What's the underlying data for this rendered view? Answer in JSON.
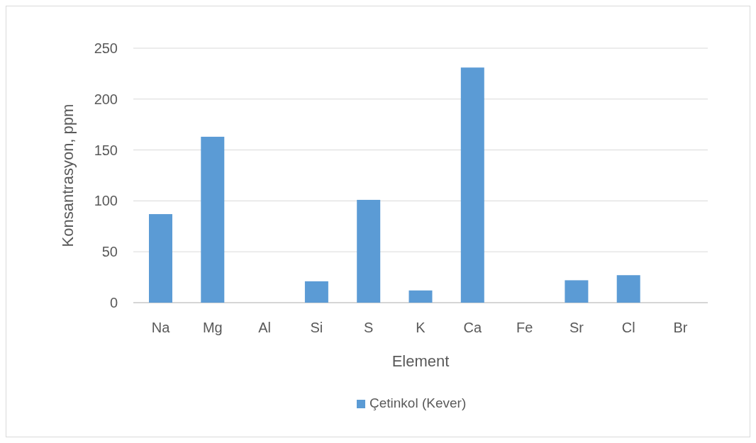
{
  "chart_data": {
    "type": "bar",
    "xlabel": "Element",
    "ylabel": "Konsantrasyon, ppm",
    "categories": [
      "Na",
      "Mg",
      "Al",
      "Si",
      "S",
      "K",
      "Ca",
      "Fe",
      "Sr",
      "Cl",
      "Br"
    ],
    "series": [
      {
        "name": "Çetinkol  (Kever)",
        "color": "#5b9bd5",
        "values": [
          87,
          163,
          0,
          21,
          101,
          12,
          231,
          0,
          22,
          27,
          0
        ]
      }
    ],
    "ylim": [
      0,
      250
    ],
    "yticks": [
      0,
      50,
      100,
      150,
      200,
      250
    ],
    "grid": "y",
    "legend": "bottom"
  }
}
